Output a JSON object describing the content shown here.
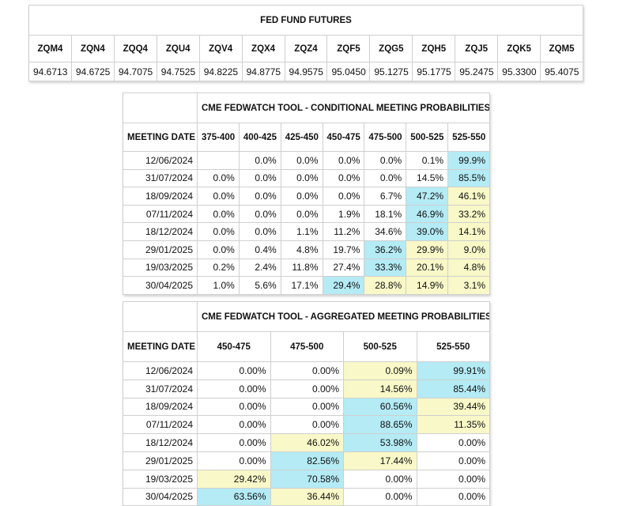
{
  "futures": {
    "title": "FED FUND FUTURES",
    "headers": [
      "ZQM4",
      "ZQN4",
      "ZQQ4",
      "ZQU4",
      "ZQV4",
      "ZQX4",
      "ZQZ4",
      "ZQF5",
      "ZQG5",
      "ZQH5",
      "ZQJ5",
      "ZQK5",
      "ZQM5"
    ],
    "values": [
      "94.6713",
      "94.6725",
      "94.7075",
      "94.7525",
      "94.8225",
      "94.8775",
      "94.9575",
      "95.0450",
      "95.1275",
      "95.1775",
      "95.2475",
      "95.3300",
      "95.4075"
    ]
  },
  "conditional": {
    "title": "CME FEDWATCH TOOL - CONDITIONAL MEETING PROBABILITIES",
    "headers": [
      "MEETING DATE",
      "375-400",
      "400-425",
      "425-450",
      "450-475",
      "475-500",
      "500-525",
      "525-550"
    ],
    "rows": [
      [
        "12/06/2024",
        null,
        "0.0%",
        "0.0%",
        "0.0%",
        "0.0%",
        "0.1%",
        "99.9%"
      ],
      [
        "31/07/2024",
        "0.0%",
        "0.0%",
        "0.0%",
        "0.0%",
        "0.0%",
        "14.5%",
        "85.5%"
      ],
      [
        "18/09/2024",
        "0.0%",
        "0.0%",
        "0.0%",
        "0.0%",
        "6.7%",
        "47.2%",
        "46.1%"
      ],
      [
        "07/11/2024",
        "0.0%",
        "0.0%",
        "0.0%",
        "1.9%",
        "18.1%",
        "46.9%",
        "33.2%"
      ],
      [
        "18/12/2024",
        "0.0%",
        "0.0%",
        "1.1%",
        "11.2%",
        "34.6%",
        "39.0%",
        "14.1%"
      ],
      [
        "29/01/2025",
        "0.0%",
        "0.4%",
        "4.8%",
        "19.7%",
        "36.2%",
        "29.9%",
        "9.0%"
      ],
      [
        "19/03/2025",
        "0.2%",
        "2.4%",
        "11.8%",
        "27.4%",
        "33.3%",
        "20.1%",
        "4.8%"
      ],
      [
        "30/04/2025",
        "1.0%",
        "5.6%",
        "17.1%",
        "29.4%",
        "28.8%",
        "14.9%",
        "3.1%"
      ]
    ],
    "cell_colors": [
      [
        null,
        null,
        null,
        null,
        null,
        null,
        null,
        "#b4ebf5"
      ],
      [
        null,
        null,
        null,
        null,
        null,
        null,
        null,
        "#b4ebf5"
      ],
      [
        null,
        null,
        null,
        null,
        null,
        null,
        "#b4ebf5",
        "#f8f8c8"
      ],
      [
        null,
        null,
        null,
        null,
        null,
        null,
        "#b4ebf5",
        "#f8f8c8"
      ],
      [
        null,
        null,
        null,
        null,
        null,
        null,
        "#b4ebf5",
        "#f8f8c8"
      ],
      [
        null,
        null,
        null,
        null,
        null,
        "#b4ebf5",
        "#f8f8c8",
        "#f8f8c8"
      ],
      [
        null,
        null,
        null,
        null,
        null,
        "#b4ebf5",
        "#f8f8c8",
        "#f8f8c8"
      ],
      [
        null,
        null,
        null,
        null,
        "#b4ebf5",
        "#f8f8c8",
        "#f8f8c8",
        "#f8f8c8"
      ]
    ]
  },
  "aggregated": {
    "title": "CME FEDWATCH TOOL - AGGREGATED MEETING PROBABILITIES",
    "headers": [
      "MEETING DATE",
      "450-475",
      "475-500",
      "500-525",
      "525-550"
    ],
    "rows": [
      [
        "12/06/2024",
        "0.00%",
        "0.00%",
        "0.09%",
        "99.91%"
      ],
      [
        "31/07/2024",
        "0.00%",
        "0.00%",
        "14.56%",
        "85.44%"
      ],
      [
        "18/09/2024",
        "0.00%",
        "0.00%",
        "60.56%",
        "39.44%"
      ],
      [
        "07/11/2024",
        "0.00%",
        "0.00%",
        "88.65%",
        "11.35%"
      ],
      [
        "18/12/2024",
        "0.00%",
        "46.02%",
        "53.98%",
        "0.00%"
      ],
      [
        "29/01/2025",
        "0.00%",
        "82.56%",
        "17.44%",
        "0.00%"
      ],
      [
        "19/03/2025",
        "29.42%",
        "70.58%",
        "0.00%",
        "0.00%"
      ],
      [
        "30/04/2025",
        "63.56%",
        "36.44%",
        "0.00%",
        "0.00%"
      ]
    ],
    "cell_colors": [
      [
        null,
        null,
        null,
        "#f8f8c8",
        "#b4ebf5"
      ],
      [
        null,
        null,
        null,
        "#f8f8c8",
        "#b4ebf5"
      ],
      [
        null,
        null,
        null,
        "#b4ebf5",
        "#f8f8c8"
      ],
      [
        null,
        null,
        null,
        "#b4ebf5",
        "#f8f8c8"
      ],
      [
        null,
        null,
        "#f8f8c8",
        "#b4ebf5",
        null
      ],
      [
        null,
        null,
        "#b4ebf5",
        "#f8f8c8",
        null
      ],
      [
        null,
        "#f8f8c8",
        "#b4ebf5",
        null,
        null
      ],
      [
        null,
        "#b4ebf5",
        "#f8f8c8",
        null,
        null
      ]
    ]
  }
}
